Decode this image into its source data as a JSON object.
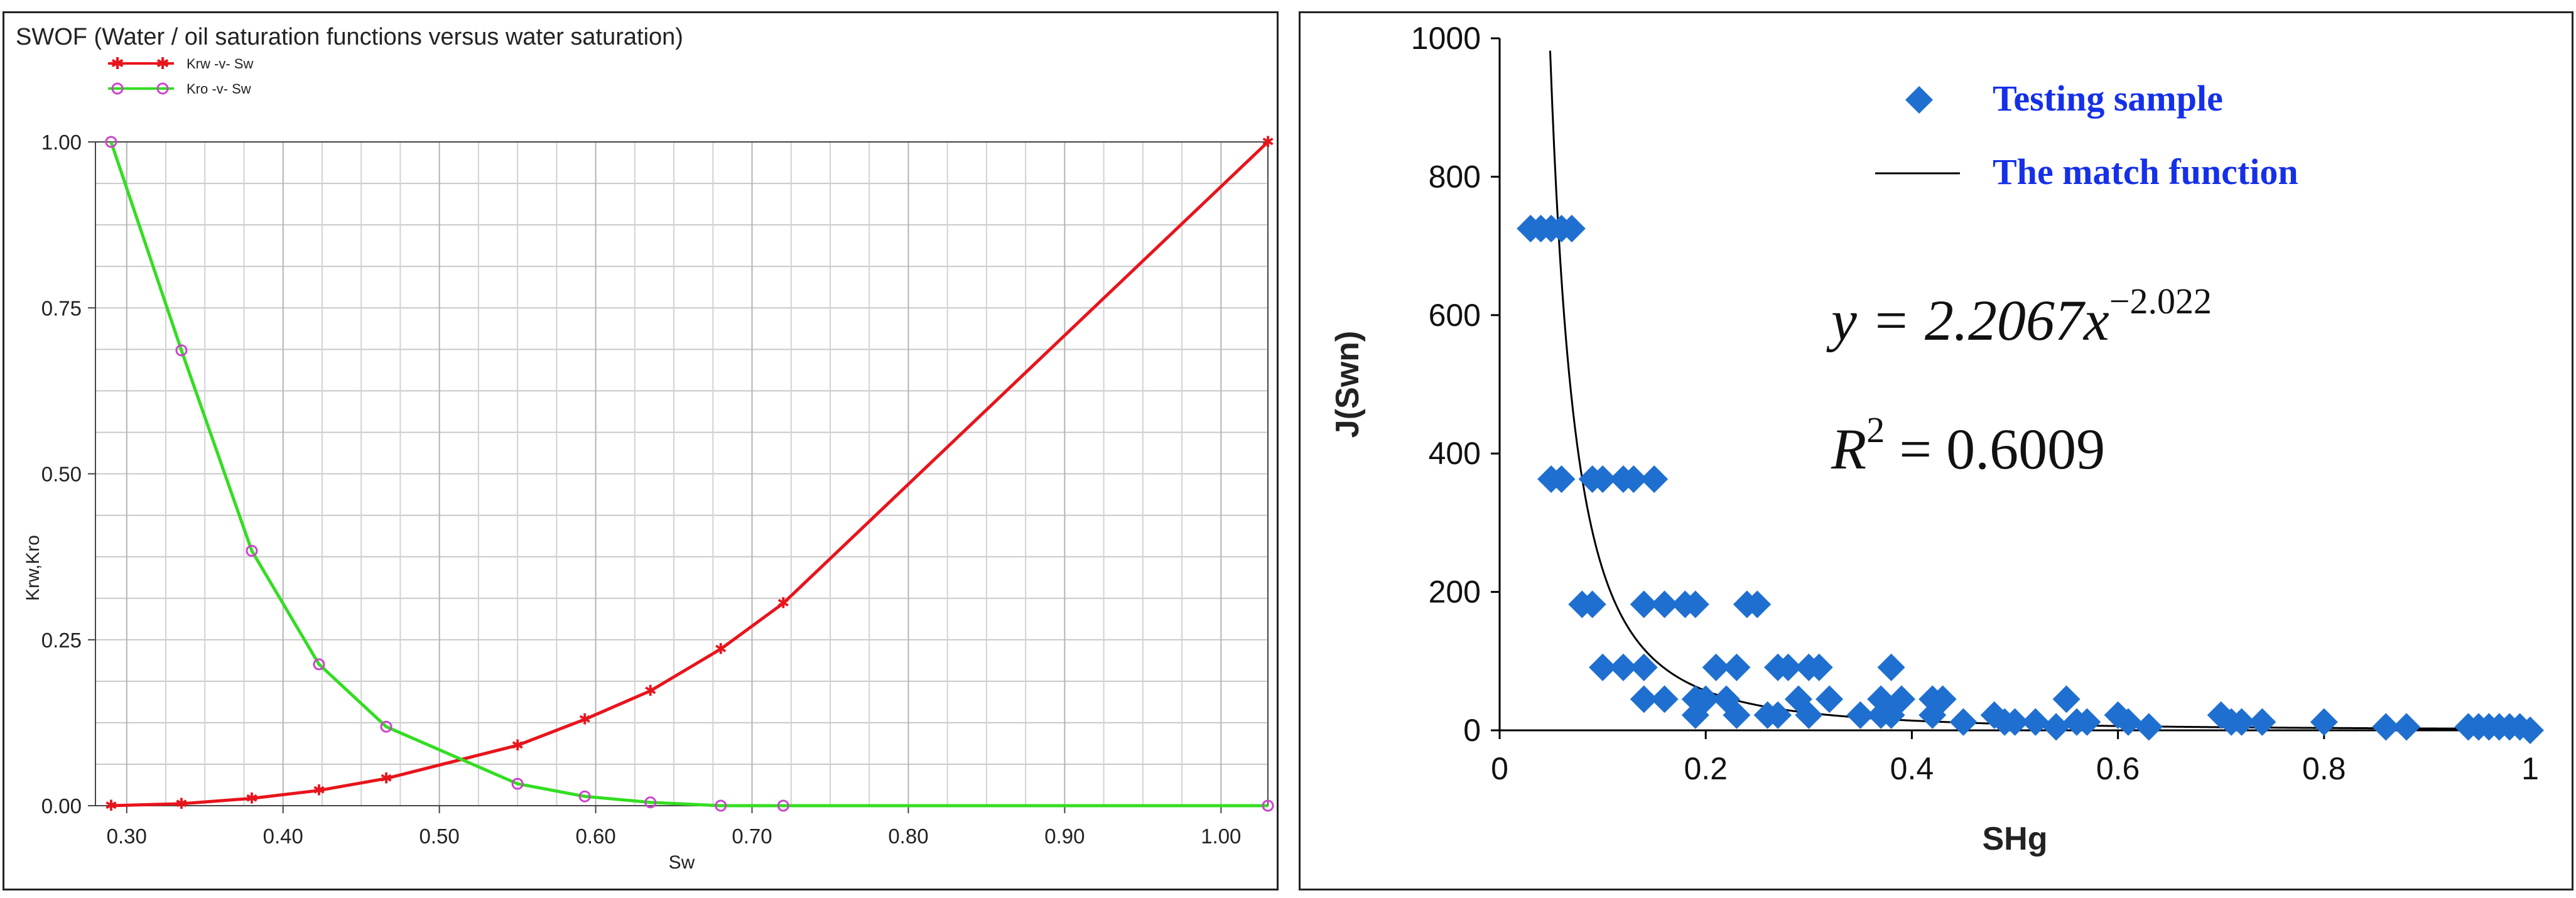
{
  "chart_data": [
    {
      "type": "line",
      "title": "SWOF (Water / oil saturation functions versus water saturation)",
      "xlabel": "Sw",
      "ylabel": "Krw,Kro",
      "xlim": [
        0.28,
        1.03
      ],
      "ylim": [
        0,
        1
      ],
      "xticks": [
        "0.30",
        "0.40",
        "0.50",
        "0.60",
        "0.70",
        "0.80",
        "0.90",
        "1.00"
      ],
      "yticks": [
        "0.00",
        "0.25",
        "0.50",
        "0.75",
        "1.00"
      ],
      "grid": true,
      "legend_position": "top-left",
      "series": [
        {
          "name": "Krw -v- Sw",
          "color": "#e8141c",
          "marker": "star",
          "x": [
            0.29,
            0.335,
            0.38,
            0.423,
            0.466,
            0.55,
            0.593,
            0.635,
            0.68,
            0.72,
            1.03
          ],
          "y": [
            0.0,
            0.003,
            0.011,
            0.023,
            0.041,
            0.091,
            0.13,
            0.173,
            0.236,
            0.305,
            1.0
          ]
        },
        {
          "name": "Kro -v- Sw",
          "color": "#33dd22",
          "marker": "circle",
          "x": [
            0.29,
            0.335,
            0.38,
            0.423,
            0.466,
            0.55,
            0.593,
            0.635,
            0.68,
            0.72,
            1.03
          ],
          "y": [
            1.0,
            0.686,
            0.384,
            0.213,
            0.119,
            0.033,
            0.014,
            0.005,
            0.0,
            0.0,
            0.0
          ]
        }
      ]
    },
    {
      "type": "scatter",
      "xlabel": "SHg",
      "ylabel": "J(Swn)",
      "xlim": [
        0,
        1
      ],
      "ylim": [
        0,
        1000
      ],
      "xticks": [
        "0",
        "0.2",
        "0.4",
        "0.6",
        "0.8",
        "1"
      ],
      "yticks": [
        "0",
        "200",
        "400",
        "600",
        "800",
        "1000"
      ],
      "grid": false,
      "legend_position": "top-right",
      "equation": "y = 2.2067x^-2.022",
      "equation_base": "y = 2.2067x",
      "equation_exp": "−2.022",
      "r2_label": "R² = 0.6009",
      "r2_prefix": "R",
      "r2_sup": "2",
      "r2_value": "= 0.6009",
      "series": [
        {
          "name": "Testing sample",
          "color": "#1f6fd0",
          "marker": "diamond",
          "x": [
            0.03,
            0.04,
            0.05,
            0.06,
            0.07,
            0.05,
            0.06,
            0.09,
            0.1,
            0.12,
            0.13,
            0.15,
            0.08,
            0.09,
            0.14,
            0.16,
            0.18,
            0.19,
            0.24,
            0.25,
            0.1,
            0.12,
            0.14,
            0.21,
            0.23,
            0.27,
            0.28,
            0.3,
            0.31,
            0.38,
            0.14,
            0.16,
            0.19,
            0.2,
            0.22,
            0.29,
            0.32,
            0.37,
            0.39,
            0.42,
            0.43,
            0.55,
            0.19,
            0.23,
            0.26,
            0.27,
            0.3,
            0.35,
            0.37,
            0.38,
            0.42,
            0.45,
            0.48,
            0.49,
            0.5,
            0.52,
            0.54,
            0.56,
            0.57,
            0.6,
            0.61,
            0.63,
            0.7,
            0.71,
            0.72,
            0.74,
            0.8,
            0.86,
            0.88,
            0.94,
            0.95,
            0.96,
            0.97,
            0.98,
            0.99,
            1.0
          ],
          "y": [
            725,
            725,
            725,
            725,
            725,
            363,
            363,
            363,
            363,
            363,
            363,
            363,
            182,
            182,
            182,
            182,
            182,
            182,
            182,
            182,
            91,
            91,
            91,
            91,
            91,
            91,
            91,
            91,
            91,
            91,
            45,
            45,
            45,
            45,
            45,
            45,
            45,
            45,
            45,
            45,
            45,
            45,
            22,
            22,
            22,
            22,
            22,
            22,
            22,
            22,
            22,
            12,
            22,
            12,
            12,
            12,
            5,
            12,
            12,
            22,
            12,
            5,
            22,
            12,
            12,
            12,
            12,
            5,
            5,
            5,
            5,
            5,
            5,
            5,
            5,
            0
          ]
        },
        {
          "name": "The match function",
          "color": "#000000",
          "line": true,
          "function": "2.2067*x^-2.022"
        }
      ]
    }
  ]
}
